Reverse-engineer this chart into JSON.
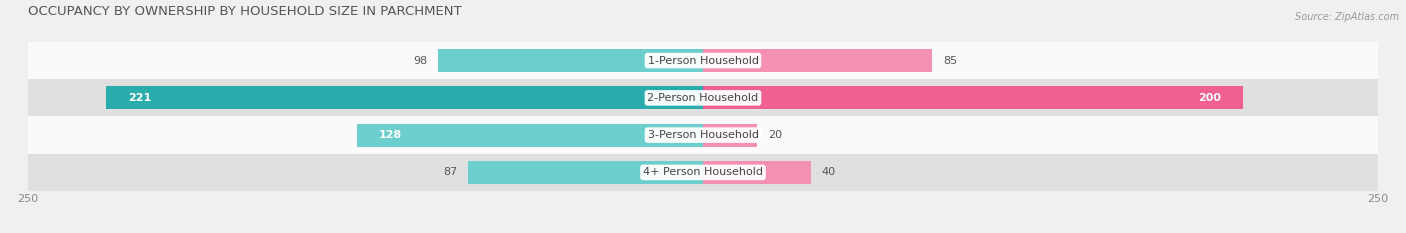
{
  "title": "OCCUPANCY BY OWNERSHIP BY HOUSEHOLD SIZE IN PARCHMENT",
  "source": "Source: ZipAtlas.com",
  "categories": [
    "1-Person Household",
    "2-Person Household",
    "3-Person Household",
    "4+ Person Household"
  ],
  "owner_values": [
    98,
    221,
    128,
    87
  ],
  "renter_values": [
    85,
    200,
    20,
    40
  ],
  "owner_color": "#6DCECE",
  "renter_color": "#F490B0",
  "owner_color_2": "#2AACAC",
  "renter_color_2": "#F06090",
  "max_val": 250,
  "bg_color": "#f0f0f0",
  "row_bg_colors": [
    "#fafafa",
    "#e0e0e0",
    "#fafafa",
    "#e0e0e0"
  ],
  "title_fontsize": 9.5,
  "label_fontsize": 8,
  "tick_fontsize": 8,
  "bar_height": 0.62,
  "value_threshold": 0.5
}
